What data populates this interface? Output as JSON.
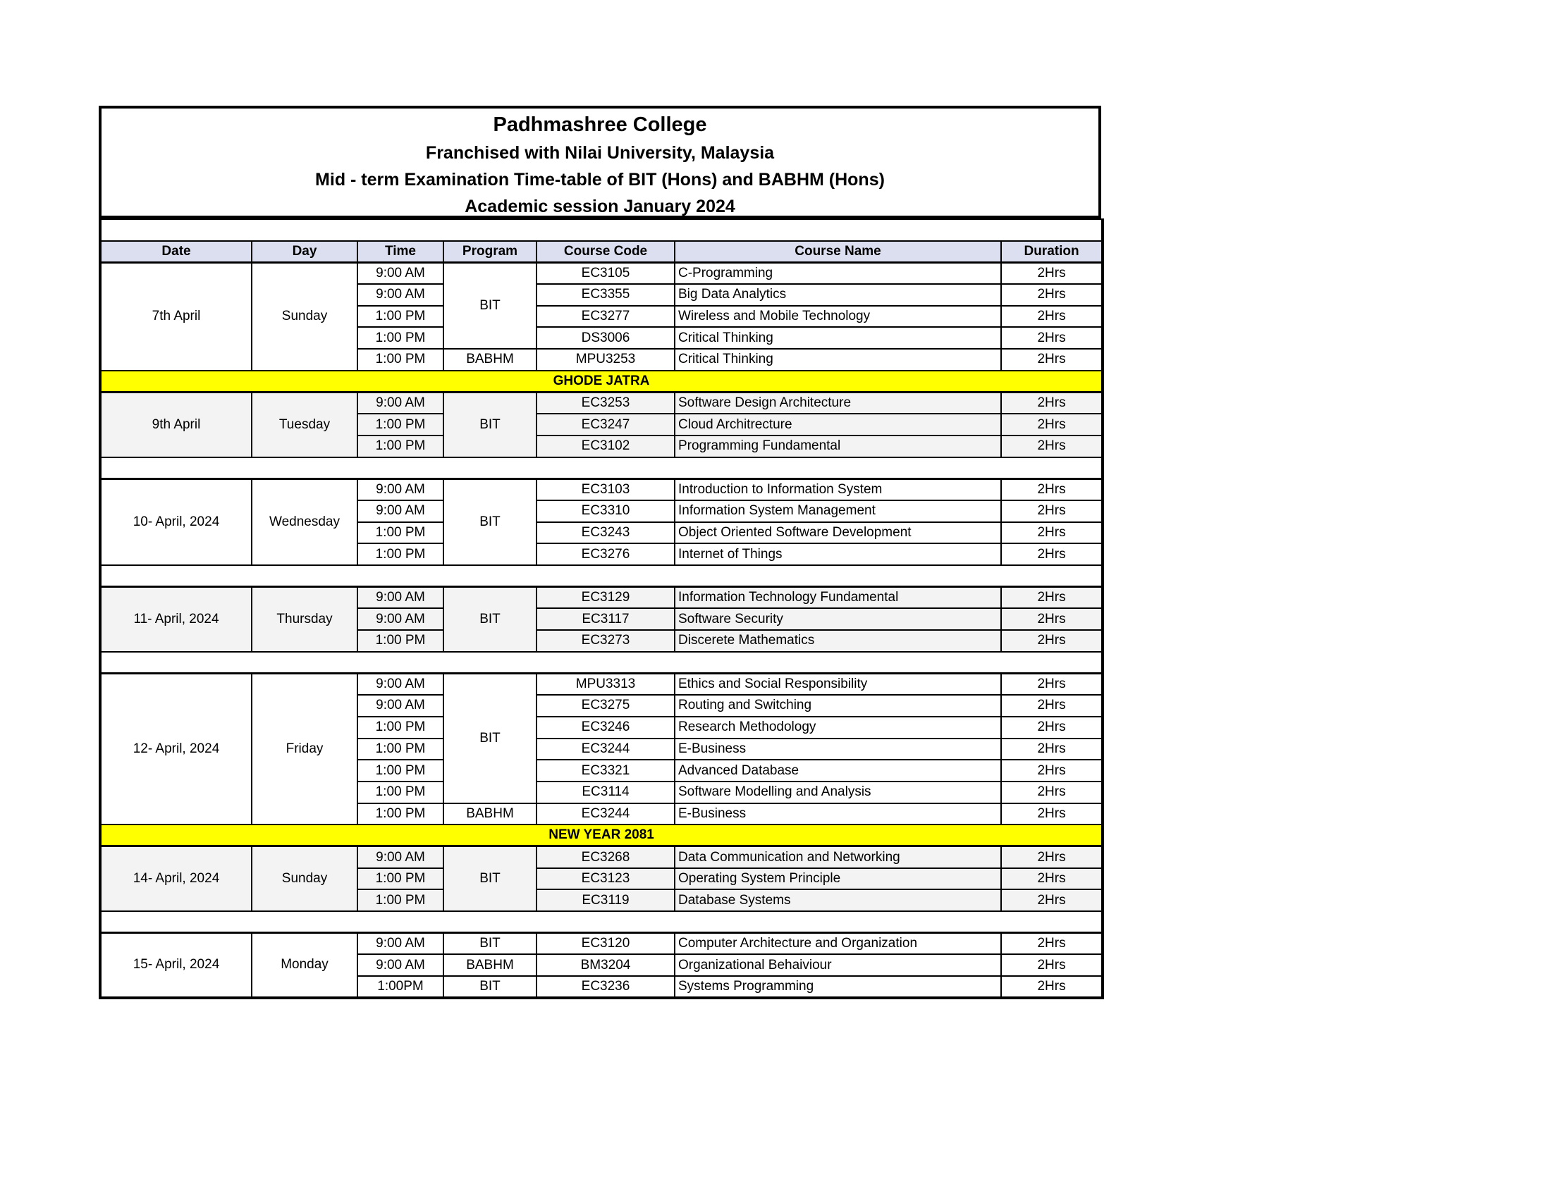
{
  "header": {
    "college": "Padhmashree College",
    "franchise": "Franchised with Nilai University, Malaysia",
    "exam_title": "Mid -  term Examination Time-table  of BIT (Hons) and BABHM (Hons)",
    "session": "Academic session January 2024"
  },
  "columns": [
    "Date",
    "Day",
    "Time",
    "Program",
    "Course Code",
    "Course Name",
    "Duration"
  ],
  "sections": [
    {
      "type": "block",
      "date": "7th April",
      "day": "Sunday",
      "shaded": false,
      "programs": [
        {
          "label": "BIT",
          "span": 4
        },
        {
          "label": "BABHM",
          "span": 1
        }
      ],
      "rows": [
        {
          "time": "9:00 AM",
          "code": "EC3105",
          "name": "C-Programming",
          "duration": "2Hrs"
        },
        {
          "time": "9:00 AM",
          "code": "EC3355",
          "name": "Big Data Analytics",
          "duration": "2Hrs"
        },
        {
          "time": "1:00 PM",
          "code": "EC3277",
          "name": "Wireless and Mobile Technology",
          "duration": "2Hrs"
        },
        {
          "time": "1:00 PM",
          "code": "DS3006",
          "name": "Critical Thinking",
          "duration": "2Hrs"
        },
        {
          "time": "1:00 PM",
          "code": "MPU3253",
          "name": "Critical Thinking",
          "duration": "2Hrs"
        }
      ]
    },
    {
      "type": "holiday",
      "label": "GHODE JATRA"
    },
    {
      "type": "block",
      "date": "9th April",
      "day": "Tuesday",
      "shaded": true,
      "programs": [
        {
          "label": "BIT",
          "span": 3
        }
      ],
      "rows": [
        {
          "time": "9:00 AM",
          "code": "EC3253",
          "name": "Software Design Architecture",
          "duration": "2Hrs"
        },
        {
          "time": "1:00 PM",
          "code": "EC3247",
          "name": "Cloud Architrecture",
          "duration": "2Hrs"
        },
        {
          "time": "1:00 PM",
          "code": "EC3102",
          "name": "Programming Fundamental",
          "duration": "2Hrs"
        }
      ]
    },
    {
      "type": "blank"
    },
    {
      "type": "block",
      "date": "10- April, 2024",
      "day": "Wednesday",
      "shaded": false,
      "programs": [
        {
          "label": "BIT",
          "span": 4
        }
      ],
      "rows": [
        {
          "time": "9:00 AM",
          "code": "EC3103",
          "name": "Introduction to Information System",
          "duration": "2Hrs"
        },
        {
          "time": "9:00 AM",
          "code": "EC3310",
          "name": "Information System Management",
          "duration": "2Hrs"
        },
        {
          "time": "1:00 PM",
          "code": "EC3243",
          "name": "Object Oriented Software Development",
          "duration": "2Hrs"
        },
        {
          "time": "1:00 PM",
          "code": "EC3276",
          "name": "Internet of Things",
          "duration": "2Hrs"
        }
      ]
    },
    {
      "type": "blank"
    },
    {
      "type": "block",
      "date": "11- April, 2024",
      "day": "Thursday",
      "shaded": true,
      "programs": [
        {
          "label": "BIT",
          "span": 3
        }
      ],
      "rows": [
        {
          "time": "9:00 AM",
          "code": "EC3129",
          "name": "Information Technology Fundamental",
          "duration": "2Hrs"
        },
        {
          "time": "9:00 AM",
          "code": "EC3117",
          "name": "Software Security",
          "duration": "2Hrs"
        },
        {
          "time": "1:00 PM",
          "code": "EC3273",
          "name": "Discerete Mathematics",
          "duration": "2Hrs"
        }
      ]
    },
    {
      "type": "blank"
    },
    {
      "type": "block",
      "date": "12- April, 2024",
      "day": "Friday",
      "shaded": false,
      "programs": [
        {
          "label": "BIT",
          "span": 6
        },
        {
          "label": "BABHM",
          "span": 1
        }
      ],
      "rows": [
        {
          "time": "9:00 AM",
          "code": "MPU3313",
          "name": "Ethics and Social Responsibility",
          "duration": "2Hrs"
        },
        {
          "time": "9:00 AM",
          "code": "EC3275",
          "name": "Routing and Switching",
          "duration": "2Hrs"
        },
        {
          "time": "1:00 PM",
          "code": "EC3246",
          "name": "Research Methodology",
          "duration": "2Hrs"
        },
        {
          "time": "1:00 PM",
          "code": "EC3244",
          "name": "E-Business",
          "duration": "2Hrs"
        },
        {
          "time": "1:00 PM",
          "code": "EC3321",
          "name": "Advanced Database",
          "duration": "2Hrs"
        },
        {
          "time": "1:00 PM",
          "code": "EC3114",
          "name": "Software Modelling and Analysis",
          "duration": "2Hrs"
        },
        {
          "time": "1:00 PM",
          "code": "EC3244",
          "name": "E-Business",
          "duration": "2Hrs"
        }
      ]
    },
    {
      "type": "holiday",
      "label": "NEW YEAR 2081"
    },
    {
      "type": "block",
      "date": "14- April, 2024",
      "day": "Sunday",
      "shaded": true,
      "programs": [
        {
          "label": "BIT",
          "span": 3
        }
      ],
      "rows": [
        {
          "time": "9:00 AM",
          "code": "EC3268",
          "name": "Data Communication and Networking",
          "duration": "2Hrs"
        },
        {
          "time": "1:00 PM",
          "code": "EC3123",
          "name": "Operating System Principle",
          "duration": "2Hrs"
        },
        {
          "time": "1:00 PM",
          "code": "EC3119",
          "name": "Database Systems",
          "duration": "2Hrs"
        }
      ]
    },
    {
      "type": "blank"
    },
    {
      "type": "block",
      "date": "15- April, 2024",
      "day": "Monday",
      "shaded": false,
      "programs": [
        {
          "label": "BIT",
          "span": 1
        },
        {
          "label": "BABHM",
          "span": 1
        },
        {
          "label": "BIT",
          "span": 1
        }
      ],
      "rows": [
        {
          "time": "9:00 AM",
          "code": "EC3120",
          "name": "Computer Architecture and Organization",
          "duration": "2Hrs"
        },
        {
          "time": "9:00 AM",
          "code": "BM3204",
          "name": "Organizational Behaiviour",
          "duration": "2Hrs"
        },
        {
          "time": "1:00PM",
          "code": "EC3236",
          "name": "Systems Programming",
          "duration": "2Hrs"
        }
      ]
    }
  ],
  "colors": {
    "header_bg": "#dcdff0",
    "holiday_bg": "#ffff00",
    "shaded_row_bg": "#f3f3f3"
  }
}
